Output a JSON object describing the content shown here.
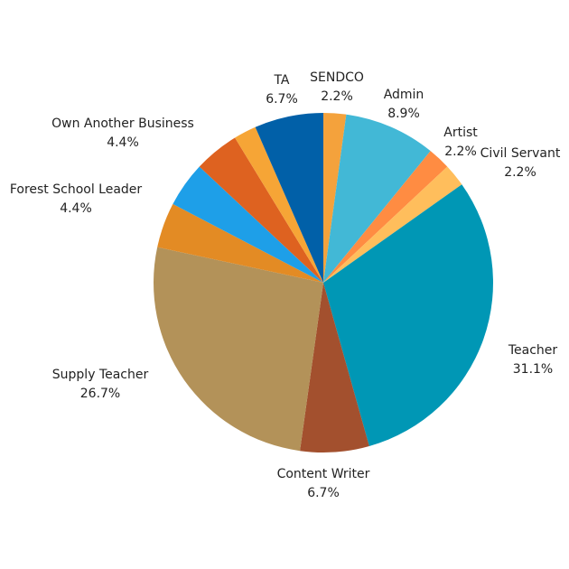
{
  "chart_data": {
    "type": "pie",
    "title": "",
    "start_angle_deg": 0,
    "direction": "clockwise",
    "slices": [
      {
        "label": "SENDCO",
        "value": 2.2,
        "value_label": "2.2%",
        "color": "#F4A23C"
      },
      {
        "label": "Admin",
        "value": 8.9,
        "value_label": "8.9%",
        "color": "#42B8D6"
      },
      {
        "label": "Artist",
        "value": 2.2,
        "value_label": "2.2%",
        "color": "#FF8C42"
      },
      {
        "label": "Civil Servant",
        "value": 2.2,
        "value_label": "2.2%",
        "color": "#FFBE5C"
      },
      {
        "label": "Teacher",
        "value": 31.1,
        "value_label": "31.1%",
        "color": "#0097B5"
      },
      {
        "label": "Content Writer",
        "value": 6.7,
        "value_label": "6.7%",
        "color": "#A3502E"
      },
      {
        "label": "Supply Teacher",
        "value": 26.7,
        "value_label": "26.7%",
        "color": "#B39259"
      },
      {
        "label": "",
        "value": 4.4,
        "value_label": "",
        "color": "#E38B24"
      },
      {
        "label": "Forest School Leader",
        "value": 4.4,
        "value_label": "4.4%",
        "color": "#1E9FE8"
      },
      {
        "label": "Own Another Business",
        "value": 4.4,
        "value_label": "4.4%",
        "color": "#DE6220"
      },
      {
        "label": "",
        "value": 2.2,
        "value_label": "",
        "color": "#F6A536"
      },
      {
        "label": "TA",
        "value": 6.7,
        "value_label": "6.7%",
        "color": "#0160A8"
      }
    ]
  }
}
